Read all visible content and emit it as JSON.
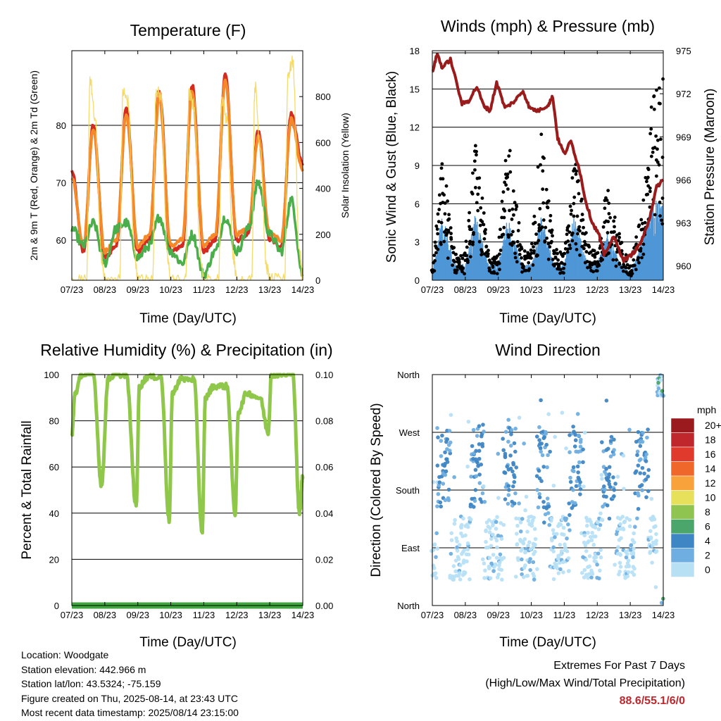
{
  "x_ticks": [
    "07/23",
    "08/23",
    "09/23",
    "10/23",
    "11/23",
    "12/23",
    "13/23",
    "14/23"
  ],
  "x_title": "Time (Day/UTC)",
  "panels": {
    "temperature": {
      "title": "Temperature (F)",
      "ylabel_left": "2m & 9m T (Red, Orange) & 2m Td (Green)",
      "ylabel_right": "Solar Insolation (Yellow)",
      "left_ticks": [
        "60",
        "70",
        "80"
      ],
      "right_ticks": [
        "0",
        "200",
        "400",
        "600",
        "800"
      ]
    },
    "winds": {
      "title": "Winds (mph) & Pressure (mb)",
      "ylabel_left": "Sonic Wind & Gust (Blue, Black)",
      "ylabel_right": "Station Pressure (Maroon)",
      "left_ticks": [
        "0",
        "3",
        "6",
        "9",
        "12",
        "15",
        "18"
      ],
      "right_ticks": [
        "960",
        "963",
        "966",
        "969",
        "972",
        "975"
      ]
    },
    "humidity": {
      "title": "Relative Humidity (%) & Precipitation (in)",
      "ylabel_left": "Percent & Total Rainfall",
      "left_ticks": [
        "0",
        "20",
        "40",
        "60",
        "80",
        "100"
      ],
      "right_ticks": [
        "0.00",
        "0.02",
        "0.04",
        "0.06",
        "0.08",
        "0.10"
      ]
    },
    "wind_direction": {
      "title": "Wind Direction",
      "ylabel_left": "Direction (Colored By Speed)",
      "dir_ticks": [
        "North",
        "East",
        "South",
        "West",
        "North"
      ],
      "legend_title": "mph",
      "legend_labels": [
        "20+",
        "18",
        "16",
        "14",
        "12",
        "10",
        "8",
        "6",
        "4",
        "2",
        "0"
      ],
      "legend_colors": [
        "#9a1a1d",
        "#c0272d",
        "#e03a2c",
        "#f0672b",
        "#f8a23c",
        "#e6e05a",
        "#8ec44f",
        "#4aa66a",
        "#3f86c4",
        "#6faee0",
        "#b7e0f5"
      ]
    }
  },
  "station_info": {
    "location": "Location: Woodgate",
    "elevation": "Station elevation: 442.966 m",
    "latlon": "Station lat/lon: 43.5324; -75.159",
    "created": "Figure created on Thu, 2025-08-14, at 23:43 UTC",
    "recent": "Most recent data timestamp: 2025/08/14 23:15:00"
  },
  "extremes": {
    "line1": "Extremes For Past 7 Days",
    "line2": "(High/Low/Max Wind/Total Precipitation)",
    "values": "88.6/55.1/6/0"
  },
  "chart_data": [
    {
      "type": "line",
      "title": "Temperature (F)",
      "x": [
        "07/23",
        "08/23",
        "09/23",
        "10/23",
        "11/23",
        "12/23",
        "13/23",
        "14/23"
      ],
      "ylim": [
        53,
        93
      ],
      "y2lim": [
        0,
        1000
      ],
      "series": [
        {
          "name": "2m T",
          "color": "#d42a20",
          "x": [
            0,
            0.35,
            0.65,
            1,
            1.35,
            1.65,
            2,
            2.35,
            2.65,
            3,
            3.35,
            3.65,
            4,
            4.35,
            4.65,
            5,
            5.35,
            5.65,
            6,
            6.35,
            6.65,
            7
          ],
          "values": [
            72,
            58,
            80,
            57,
            59,
            83,
            58,
            60,
            86,
            58,
            59,
            87,
            58,
            60,
            89,
            60,
            61,
            79,
            60,
            59,
            82,
            73
          ]
        },
        {
          "name": "9m T",
          "color": "#f5892a",
          "x": [
            0,
            0.35,
            0.65,
            1,
            1.35,
            1.65,
            2,
            2.35,
            2.65,
            3,
            3.35,
            3.65,
            4,
            4.35,
            4.65,
            5,
            5.35,
            5.65,
            6,
            6.35,
            6.65,
            7
          ],
          "values": [
            71,
            59,
            79,
            58,
            60,
            82,
            59,
            61,
            85,
            59,
            60,
            86,
            59,
            61,
            88,
            61,
            62,
            78,
            61,
            60,
            81,
            72
          ]
        },
        {
          "name": "2m Td",
          "color": "#4aae4a",
          "x": [
            0,
            0.35,
            0.65,
            1,
            1.35,
            1.65,
            2,
            2.35,
            2.65,
            3,
            3.35,
            3.65,
            4,
            4.35,
            4.65,
            5,
            5.35,
            5.65,
            6,
            6.35,
            6.65,
            7
          ],
          "values": [
            62,
            59,
            63,
            56,
            62,
            63,
            57,
            59,
            64,
            58,
            56,
            61,
            54,
            58,
            64,
            58,
            62,
            70,
            61,
            58,
            67,
            54
          ]
        },
        {
          "name": "Solar Insolation",
          "axis": "right",
          "color": "#f4d75a",
          "x": [
            0,
            0.45,
            0.55,
            0.7,
            0.9,
            1,
            1.45,
            1.55,
            1.7,
            1.9,
            2,
            2.45,
            2.55,
            2.7,
            2.9,
            3,
            3.45,
            3.55,
            3.7,
            3.9,
            4,
            4.45,
            4.55,
            4.7,
            4.9,
            5,
            5.45,
            5.55,
            5.7,
            5.9,
            6,
            6.45,
            6.55,
            6.7,
            6.9,
            7
          ],
          "values": [
            0,
            0,
            880,
            700,
            100,
            0,
            0,
            820,
            780,
            120,
            0,
            0,
            830,
            800,
            90,
            0,
            0,
            810,
            760,
            110,
            0,
            0,
            790,
            700,
            100,
            0,
            0,
            850,
            600,
            60,
            0,
            0,
            900,
            950,
            120,
            0
          ]
        }
      ]
    },
    {
      "type": "line",
      "title": "Winds (mph) & Pressure (mb)",
      "x": [
        "07/23",
        "08/23",
        "09/23",
        "10/23",
        "11/23",
        "12/23",
        "13/23",
        "14/23"
      ],
      "ylim": [
        0,
        18
      ],
      "y2lim": [
        959,
        975
      ],
      "series": [
        {
          "name": "Sonic Wind",
          "color": "#4f97d6",
          "x": [
            0,
            0.3,
            0.7,
            1,
            1.3,
            1.7,
            2,
            2.3,
            2.7,
            3,
            3.3,
            3.7,
            4,
            4.3,
            4.7,
            5,
            5.3,
            5.7,
            6,
            6.3,
            6.7,
            7
          ],
          "values": [
            0.5,
            4,
            1,
            1,
            4,
            1,
            1,
            4,
            1,
            1,
            4,
            1,
            1,
            4,
            1,
            1,
            3,
            1,
            0.5,
            2,
            5,
            5
          ]
        },
        {
          "name": "Gust",
          "color": "#000000",
          "x": [
            0,
            0.3,
            0.7,
            1,
            1.3,
            1.7,
            2,
            2.3,
            2.7,
            3,
            3.3,
            3.7,
            4,
            4.3,
            4.7,
            5,
            5.3,
            5.7,
            6,
            6.3,
            6.7,
            7
          ],
          "values": [
            0.8,
            9.5,
            2,
            2,
            10.5,
            2.5,
            2,
            11.5,
            2.5,
            2,
            11,
            2.5,
            2,
            10,
            3,
            2,
            7,
            3,
            1,
            5,
            14,
            16
          ]
        },
        {
          "name": "Station Pressure",
          "axis": "right",
          "color": "#9a1b1b",
          "x": [
            0,
            0.15,
            0.3,
            0.55,
            0.9,
            1.1,
            1.35,
            1.55,
            1.75,
            1.95,
            2.2,
            2.5,
            2.75,
            2.95,
            3.2,
            3.5,
            3.65,
            3.8,
            4.0,
            4.2,
            4.45,
            4.65,
            4.85,
            5.05,
            5.2,
            5.5,
            5.8,
            6.0,
            6.2,
            6.4,
            6.6,
            6.8,
            7
          ],
          "values": [
            973.5,
            974.8,
            973.8,
            974.4,
            971.3,
            971.5,
            972.5,
            971.2,
            970.8,
            972.8,
            971.0,
            971.5,
            972.2,
            971.0,
            970.8,
            971.2,
            971.8,
            968.9,
            967.8,
            968.7,
            966.8,
            964.5,
            963.0,
            962.2,
            960.8,
            962.0,
            960.4,
            960.7,
            961.2,
            962.0,
            963.5,
            965.5,
            966.0
          ]
        }
      ]
    },
    {
      "type": "line",
      "title": "Relative Humidity (%) & Precipitation (in)",
      "x": [
        "07/23",
        "08/23",
        "09/23",
        "10/23",
        "11/23",
        "12/23",
        "13/23",
        "14/23"
      ],
      "ylim": [
        0,
        100
      ],
      "y2lim": [
        0,
        0.1
      ],
      "series": [
        {
          "name": "Relative Humidity",
          "color": "#8fc74a",
          "x": [
            0,
            0.1,
            0.3,
            0.65,
            0.9,
            1.1,
            1.3,
            1.65,
            1.95,
            2.05,
            2.3,
            2.7,
            2.95,
            3.05,
            3.3,
            3.7,
            3.95,
            4.05,
            4.3,
            4.7,
            4.95,
            5.05,
            5.3,
            5.7,
            5.95,
            6.05,
            6.3,
            6.7,
            6.9,
            7
          ],
          "values": [
            74,
            92,
            100,
            100,
            52,
            98,
            100,
            100,
            43,
            95,
            99,
            99,
            37,
            92,
            98,
            98,
            32,
            90,
            95,
            95,
            40,
            84,
            92,
            90,
            75,
            100,
            100,
            100,
            40,
            56
          ]
        },
        {
          "name": "Total Rainfall",
          "axis": "right",
          "color": "#3fa63f",
          "x": [
            0,
            7
          ],
          "values": [
            0,
            0
          ]
        }
      ]
    },
    {
      "type": "scatter",
      "title": "Wind Direction",
      "x": [
        "07/23",
        "08/23",
        "09/23",
        "10/23",
        "11/23",
        "12/23",
        "13/23",
        "14/23"
      ],
      "yticks": [
        "North",
        "East",
        "South",
        "West",
        "North"
      ],
      "ylim": [
        0,
        360
      ],
      "series": [
        {
          "name": "Direction",
          "x": [
            0.2,
            0.4,
            0.55,
            0.8,
            1.2,
            1.35,
            1.5,
            1.8,
            2.1,
            2.3,
            2.5,
            2.8,
            3.1,
            3.3,
            3.5,
            3.8,
            4.1,
            4.3,
            4.5,
            4.8,
            5.1,
            5.3,
            5.5,
            5.8,
            6.0,
            6.2,
            6.5,
            6.8,
            6.95,
            7.0
          ],
          "values": [
            100,
            110,
            200,
            90,
            250,
            210,
            230,
            95,
            180,
            230,
            260,
            90,
            180,
            200,
            240,
            95,
            160,
            200,
            230,
            90,
            180,
            220,
            240,
            95,
            170,
            240,
            280,
            330,
            20,
            350
          ]
        }
      ]
    }
  ]
}
